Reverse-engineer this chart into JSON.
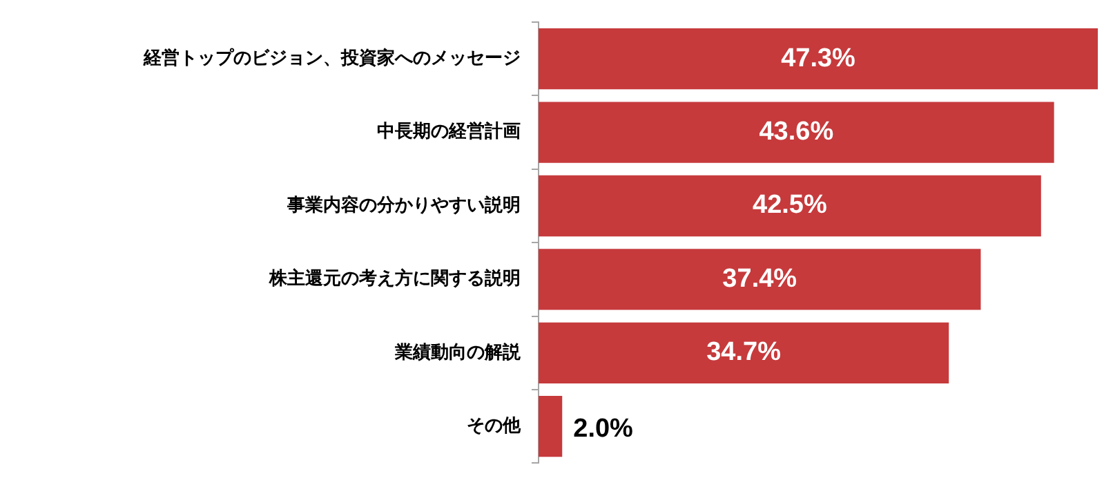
{
  "chart_data": {
    "type": "bar",
    "orientation": "horizontal",
    "categories": [
      "経営トップのビジョン、投資家へのメッセージ",
      "中長期の経営計画",
      "事業内容の分かりやすい説明",
      "株主還元の考え方に関する説明",
      "業績動向の解説",
      "その他"
    ],
    "values": [
      47.3,
      43.6,
      42.5,
      37.4,
      34.7,
      2.0
    ],
    "value_labels": [
      "47.3%",
      "43.6%",
      "42.5%",
      "37.4%",
      "34.7%",
      "2.0%"
    ],
    "color": "#c63a3c",
    "tick_labels": "y",
    "legend": false,
    "grid": false
  }
}
